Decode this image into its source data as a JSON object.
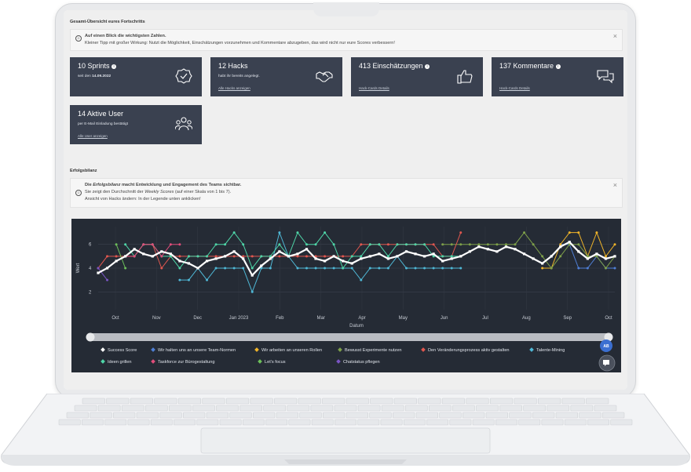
{
  "sections": {
    "overview_title": "Gesamt-Übersicht eures Fortschritts",
    "success_title": "Erfolgsbilanz"
  },
  "info1": {
    "line1": "Auf einen Blick die wichtigsten Zahlen.",
    "line2": "Kleiner Tipp mit großer Wirkung: Nutzt die Möglichkeit, Einschätzungen vorzunehmen und Kommentare abzugeben, das wird nicht nur eure Scores verbessern!",
    "close": "×"
  },
  "cards": [
    {
      "title": "10 Sprints",
      "sub_prefix": "seit den ",
      "sub_bold": "14.09.2022",
      "link": "",
      "icon": "check-badge-icon"
    },
    {
      "title": "12 Hacks",
      "sub_prefix": "habt ihr bereits angelegt.",
      "sub_bold": "",
      "link": "Alle Hacks anzeigen",
      "icon": "handshake-icon"
    },
    {
      "title": "413 Einschätzungen",
      "sub_prefix": "",
      "sub_bold": "",
      "link": "Hack-Cards Details",
      "icon": "thumbs-up-icon"
    },
    {
      "title": "137 Kommentare",
      "sub_prefix": "",
      "sub_bold": "",
      "link": "Hack-Cards Details",
      "icon": "chat-bubbles-icon"
    },
    {
      "title": "14 Aktive User",
      "sub_prefix": "per E-Mail Einladung bestätigt",
      "sub_bold": "",
      "link": "Alle User anzeigen",
      "icon": "users-icon"
    }
  ],
  "info2": {
    "line1_a": "Die ",
    "line1_b": "Erfolgsbilanz",
    "line1_c": " macht Entwicklung und Engagement des Teams sichtbar.",
    "line2_a": "Sie zeigt den Durchschnitt der ",
    "line2_b": "Weekly Scores",
    "line2_c": " (auf einer Skala von 1 bis 7).",
    "line3": "Ansicht von Hacks ändern: In der Legende unten anklicken!",
    "close": "×"
  },
  "chart_data": {
    "type": "line",
    "xlabel": "Datum",
    "ylabel": "Wert",
    "yticks": [
      "2",
      "4",
      "6"
    ],
    "ylim": [
      0.5,
      7.5
    ],
    "x_ticks": [
      "Oct",
      "Nov",
      "Dec",
      "Jan 2023",
      "Feb",
      "Mar",
      "Apr",
      "May",
      "Jun",
      "Jul",
      "Aug",
      "Sep",
      "Oct"
    ],
    "grid": true,
    "legend_position": "bottom",
    "series": [
      {
        "name": "Success Score",
        "color": "#ffffff",
        "values": [
          3.6,
          4.0,
          4.6,
          5.0,
          5.6,
          5.2,
          5.0,
          5.4,
          5.2,
          4.6,
          4.4,
          4.0,
          4.6,
          4.8,
          5.0,
          5.4,
          4.8,
          3.4,
          4.2,
          4.8,
          5.4,
          5.0,
          5.2,
          5.6,
          4.8,
          4.6,
          5.0,
          4.6,
          4.4,
          4.8,
          5.0,
          5.2,
          4.8,
          5.0,
          5.4,
          5.2,
          5.0,
          5.2,
          4.6,
          4.8,
          5.0,
          5.4,
          5.8,
          5.6,
          5.4,
          5.8,
          5.6,
          5.2,
          4.8,
          4.4,
          5.0,
          5.8,
          6.2,
          5.4,
          4.8,
          5.2,
          4.8,
          5.0
        ]
      },
      {
        "name": "Wir halten uns an unsere Team-Normen",
        "color": "#4f7fd6",
        "values": [
          null,
          null,
          null,
          null,
          null,
          null,
          null,
          null,
          null,
          null,
          null,
          null,
          null,
          null,
          null,
          null,
          null,
          null,
          null,
          null,
          null,
          null,
          null,
          null,
          null,
          null,
          null,
          null,
          null,
          null,
          null,
          null,
          null,
          null,
          null,
          null,
          null,
          null,
          null,
          null,
          null,
          null,
          null,
          null,
          null,
          null,
          null,
          null,
          null,
          null,
          null,
          6,
          6,
          4,
          4,
          5,
          4,
          4
        ]
      },
      {
        "name": "Wir arbeiten an unseren Rollen",
        "color": "#f0b429",
        "values": [
          null,
          null,
          null,
          null,
          null,
          null,
          null,
          null,
          null,
          null,
          null,
          null,
          null,
          null,
          null,
          null,
          null,
          null,
          null,
          null,
          null,
          null,
          null,
          null,
          null,
          null,
          null,
          null,
          null,
          null,
          null,
          null,
          null,
          null,
          null,
          null,
          null,
          null,
          null,
          null,
          null,
          null,
          null,
          null,
          null,
          null,
          null,
          null,
          null,
          4,
          4,
          6,
          7,
          7,
          5,
          7,
          5,
          6
        ]
      },
      {
        "name": "Bewusst Experimente nutzen",
        "color": "#7ea04a",
        "values": [
          null,
          null,
          null,
          null,
          null,
          null,
          null,
          null,
          null,
          null,
          null,
          null,
          null,
          null,
          null,
          null,
          null,
          null,
          null,
          null,
          null,
          null,
          null,
          null,
          null,
          null,
          null,
          null,
          null,
          null,
          null,
          null,
          null,
          null,
          null,
          null,
          null,
          null,
          6,
          6,
          6,
          6,
          6,
          6,
          6,
          6,
          6,
          7,
          6,
          5,
          4,
          5,
          6,
          6,
          5,
          5,
          4,
          5
        ]
      },
      {
        "name": "Den Veränderungsprozess aktiv gestalten",
        "color": "#e0574f",
        "values": [
          4,
          5,
          5,
          5,
          5,
          6,
          6,
          4,
          5,
          5,
          5,
          5,
          5,
          5,
          5,
          5,
          5,
          5,
          5,
          5,
          5,
          5,
          5,
          5,
          5,
          5,
          5,
          5,
          5,
          6,
          6,
          6,
          6,
          6,
          6,
          6,
          6,
          6,
          5,
          5,
          7,
          null,
          null,
          null,
          null,
          null,
          null,
          null,
          null,
          null,
          null,
          null,
          null,
          null,
          null,
          null,
          null,
          null
        ]
      },
      {
        "name": "Talente-Mining",
        "color": "#4fb8d6",
        "values": [
          null,
          null,
          null,
          null,
          null,
          null,
          null,
          null,
          null,
          3,
          3,
          4,
          3,
          4,
          4,
          4,
          4,
          2,
          4,
          4,
          7,
          5,
          4,
          4,
          4,
          4,
          4,
          4,
          4,
          3,
          4,
          4,
          4,
          5,
          4,
          4,
          4,
          4,
          4,
          4,
          4,
          null,
          null,
          null,
          null,
          null,
          null,
          null,
          null,
          null,
          null,
          null,
          null,
          null,
          null,
          null,
          null,
          null
        ]
      },
      {
        "name": "Ideen grillen",
        "color": "#4fd6a8",
        "values": [
          null,
          null,
          null,
          6,
          5,
          6,
          6,
          5,
          5,
          4,
          5,
          5,
          5,
          6,
          6,
          7,
          6,
          4,
          5,
          5,
          6,
          5,
          7,
          6,
          6,
          7,
          6,
          4,
          5,
          5,
          6,
          6,
          5,
          6,
          6,
          6,
          6,
          5,
          5,
          5,
          5,
          null,
          null,
          null,
          null,
          null,
          null,
          null,
          null,
          null,
          null,
          null,
          null,
          null,
          null,
          null,
          null,
          null
        ]
      },
      {
        "name": "Taskforce zur Bürogestaltung",
        "color": "#e04d7a",
        "values": [
          null,
          null,
          null,
          5,
          5,
          6,
          6,
          5,
          6,
          6,
          null,
          null,
          null,
          null,
          null,
          null,
          null,
          null,
          null,
          null,
          null,
          null,
          null,
          null,
          null,
          null,
          null,
          null,
          null,
          null,
          null,
          null,
          null,
          null,
          null,
          null,
          null,
          null,
          null,
          null,
          null,
          null,
          null,
          null,
          null,
          null,
          null,
          null,
          null,
          null,
          null,
          null,
          null,
          null,
          null,
          null,
          null,
          null
        ]
      },
      {
        "name": "Let's focus",
        "color": "#6dbf5a",
        "values": [
          null,
          null,
          6,
          4,
          null,
          null,
          null,
          null,
          null,
          null,
          null,
          null,
          null,
          null,
          null,
          null,
          null,
          null,
          null,
          null,
          null,
          null,
          null,
          null,
          null,
          null,
          null,
          null,
          null,
          null,
          null,
          null,
          null,
          null,
          null,
          null,
          null,
          null,
          null,
          null,
          null,
          null,
          null,
          null,
          null,
          null,
          null,
          null,
          null,
          null,
          null,
          null,
          null,
          null,
          null,
          null,
          null,
          null
        ]
      },
      {
        "name": "Chatstatus pflegen",
        "color": "#7a55c4",
        "values": [
          4,
          3,
          null,
          null,
          null,
          null,
          null,
          null,
          null,
          null,
          null,
          null,
          null,
          null,
          null,
          null,
          null,
          null,
          null,
          null,
          null,
          null,
          null,
          null,
          null,
          null,
          null,
          null,
          null,
          null,
          null,
          null,
          null,
          null,
          null,
          null,
          null,
          null,
          null,
          null,
          null,
          null,
          null,
          null,
          null,
          null,
          null,
          null,
          null,
          null,
          null,
          null,
          null,
          null,
          null,
          null,
          null,
          null
        ]
      }
    ]
  },
  "fab": {
    "badge": "AB",
    "chat_icon": "chat-icon"
  }
}
